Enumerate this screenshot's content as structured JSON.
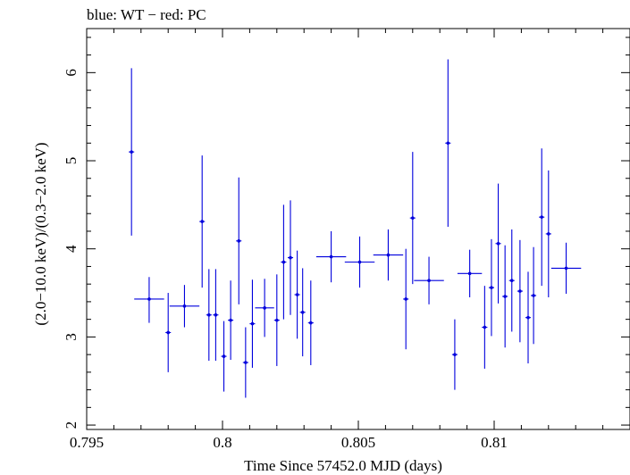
{
  "chart_data": {
    "type": "scatter",
    "title": "blue: WT − red: PC",
    "xlabel": "Time Since 57452.0 MJD (days)",
    "ylabel": "(2.0−10.0 keV)/(0.3−2.0 keV)",
    "xlim": [
      0.795,
      0.815
    ],
    "ylim": [
      1.95,
      6.5
    ],
    "x_ticks": [
      {
        "value": 0.795,
        "label": "0.795"
      },
      {
        "value": 0.8,
        "label": "0.8"
      },
      {
        "value": 0.805,
        "label": "0.805"
      },
      {
        "value": 0.81,
        "label": "0.81"
      }
    ],
    "y_ticks": [
      {
        "value": 2,
        "label": "2"
      },
      {
        "value": 3,
        "label": "3"
      },
      {
        "value": 4,
        "label": "4"
      },
      {
        "value": 5,
        "label": "5"
      },
      {
        "value": 6,
        "label": "6"
      }
    ],
    "series_color": "#0000dd",
    "points": [
      {
        "x": 0.79665,
        "xerr": 0.0001,
        "y": 5.1,
        "yerr_lo": 0.95,
        "yerr_hi": 0.95
      },
      {
        "x": 0.7973,
        "xerr": 0.00055,
        "y": 3.43,
        "yerr_lo": 0.27,
        "yerr_hi": 0.25
      },
      {
        "x": 0.798,
        "xerr": 0.0001,
        "y": 3.05,
        "yerr_lo": 0.45,
        "yerr_hi": 0.45
      },
      {
        "x": 0.7986,
        "xerr": 0.00055,
        "y": 3.35,
        "yerr_lo": 0.24,
        "yerr_hi": 0.24
      },
      {
        "x": 0.79925,
        "xerr": 0.0001,
        "y": 4.31,
        "yerr_lo": 0.75,
        "yerr_hi": 0.75
      },
      {
        "x": 0.7995,
        "xerr": 0.0001,
        "y": 3.25,
        "yerr_lo": 0.52,
        "yerr_hi": 0.52
      },
      {
        "x": 0.79975,
        "xerr": 0.0001,
        "y": 3.25,
        "yerr_lo": 0.52,
        "yerr_hi": 0.52
      },
      {
        "x": 0.80005,
        "xerr": 0.0001,
        "y": 2.78,
        "yerr_lo": 0.4,
        "yerr_hi": 0.4
      },
      {
        "x": 0.8003,
        "xerr": 0.0001,
        "y": 3.19,
        "yerr_lo": 0.45,
        "yerr_hi": 0.45
      },
      {
        "x": 0.8006,
        "xerr": 0.0001,
        "y": 4.09,
        "yerr_lo": 0.72,
        "yerr_hi": 0.72
      },
      {
        "x": 0.80085,
        "xerr": 0.0001,
        "y": 2.71,
        "yerr_lo": 0.4,
        "yerr_hi": 0.4
      },
      {
        "x": 0.8011,
        "xerr": 0.0001,
        "y": 3.15,
        "yerr_lo": 0.5,
        "yerr_hi": 0.5
      },
      {
        "x": 0.80155,
        "xerr": 0.00035,
        "y": 3.33,
        "yerr_lo": 0.33,
        "yerr_hi": 0.33
      },
      {
        "x": 0.802,
        "xerr": 0.0001,
        "y": 3.19,
        "yerr_lo": 0.52,
        "yerr_hi": 0.52
      },
      {
        "x": 0.80225,
        "xerr": 0.0001,
        "y": 3.85,
        "yerr_lo": 0.65,
        "yerr_hi": 0.65
      },
      {
        "x": 0.8025,
        "xerr": 0.0001,
        "y": 3.9,
        "yerr_lo": 0.65,
        "yerr_hi": 0.65
      },
      {
        "x": 0.80275,
        "xerr": 0.0001,
        "y": 3.48,
        "yerr_lo": 0.5,
        "yerr_hi": 0.5
      },
      {
        "x": 0.80295,
        "xerr": 0.0001,
        "y": 3.28,
        "yerr_lo": 0.5,
        "yerr_hi": 0.5
      },
      {
        "x": 0.80325,
        "xerr": 0.0001,
        "y": 3.16,
        "yerr_lo": 0.48,
        "yerr_hi": 0.48
      },
      {
        "x": 0.804,
        "xerr": 0.00055,
        "y": 3.91,
        "yerr_lo": 0.29,
        "yerr_hi": 0.29
      },
      {
        "x": 0.80505,
        "xerr": 0.00055,
        "y": 3.85,
        "yerr_lo": 0.29,
        "yerr_hi": 0.29
      },
      {
        "x": 0.8061,
        "xerr": 0.00055,
        "y": 3.93,
        "yerr_lo": 0.29,
        "yerr_hi": 0.29
      },
      {
        "x": 0.80675,
        "xerr": 0.0001,
        "y": 3.43,
        "yerr_lo": 0.57,
        "yerr_hi": 0.57
      },
      {
        "x": 0.807,
        "xerr": 0.0001,
        "y": 4.35,
        "yerr_lo": 0.75,
        "yerr_hi": 0.75
      },
      {
        "x": 0.8076,
        "xerr": 0.00055,
        "y": 3.64,
        "yerr_lo": 0.27,
        "yerr_hi": 0.27
      },
      {
        "x": 0.8083,
        "xerr": 0.0001,
        "y": 5.2,
        "yerr_lo": 0.95,
        "yerr_hi": 0.95
      },
      {
        "x": 0.80855,
        "xerr": 0.0001,
        "y": 2.8,
        "yerr_lo": 0.4,
        "yerr_hi": 0.4
      },
      {
        "x": 0.8091,
        "xerr": 0.00045,
        "y": 3.72,
        "yerr_lo": 0.27,
        "yerr_hi": 0.27
      },
      {
        "x": 0.80965,
        "xerr": 0.0001,
        "y": 3.11,
        "yerr_lo": 0.47,
        "yerr_hi": 0.47
      },
      {
        "x": 0.8099,
        "xerr": 0.0001,
        "y": 3.56,
        "yerr_lo": 0.55,
        "yerr_hi": 0.55
      },
      {
        "x": 0.81015,
        "xerr": 0.0001,
        "y": 4.06,
        "yerr_lo": 0.68,
        "yerr_hi": 0.68
      },
      {
        "x": 0.8104,
        "xerr": 0.0001,
        "y": 3.46,
        "yerr_lo": 0.58,
        "yerr_hi": 0.58
      },
      {
        "x": 0.81065,
        "xerr": 0.0001,
        "y": 3.64,
        "yerr_lo": 0.58,
        "yerr_hi": 0.58
      },
      {
        "x": 0.81095,
        "xerr": 0.0001,
        "y": 3.52,
        "yerr_lo": 0.58,
        "yerr_hi": 0.58
      },
      {
        "x": 0.81125,
        "xerr": 0.0001,
        "y": 3.22,
        "yerr_lo": 0.52,
        "yerr_hi": 0.52
      },
      {
        "x": 0.81145,
        "xerr": 0.0001,
        "y": 3.47,
        "yerr_lo": 0.55,
        "yerr_hi": 0.55
      },
      {
        "x": 0.81175,
        "xerr": 0.0001,
        "y": 4.36,
        "yerr_lo": 0.78,
        "yerr_hi": 0.78
      },
      {
        "x": 0.812,
        "xerr": 0.0001,
        "y": 4.17,
        "yerr_lo": 0.72,
        "yerr_hi": 0.72
      },
      {
        "x": 0.81265,
        "xerr": 0.00055,
        "y": 3.78,
        "yerr_lo": 0.29,
        "yerr_hi": 0.29
      }
    ]
  }
}
